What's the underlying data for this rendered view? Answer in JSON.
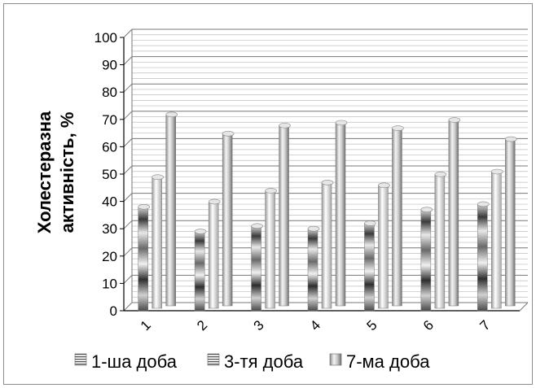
{
  "chart_data": {
    "type": "bar",
    "title": "",
    "xlabel": "",
    "ylabel": "Холестеразна активність, %",
    "ylim": [
      0,
      100
    ],
    "yticks": [
      0,
      10,
      20,
      30,
      40,
      50,
      60,
      70,
      80,
      90,
      100
    ],
    "categories": [
      "1",
      "2",
      "3",
      "4",
      "5",
      "6",
      "7"
    ],
    "series": [
      {
        "name": "1-ша доба",
        "values": [
          38,
          29,
          31,
          30,
          32,
          37,
          39
        ]
      },
      {
        "name": "3-тя доба",
        "values": [
          48,
          39,
          43,
          46,
          45,
          49,
          50
        ]
      },
      {
        "name": "7-ма доба",
        "values": [
          70,
          63,
          66,
          67,
          65,
          68,
          61
        ]
      }
    ],
    "grid": true,
    "legend_position": "bottom"
  }
}
